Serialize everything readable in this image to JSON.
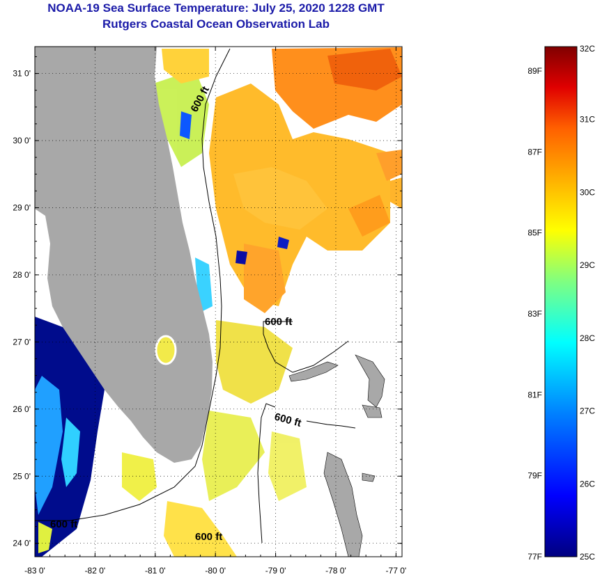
{
  "title": "NOAA-19 Sea Surface Temperature:  July 25, 2020 1228 GMT",
  "subtitle": "Rutgers Coastal Ocean Observation Lab",
  "map": {
    "lat_labels": [
      "31 0'",
      "30 0'",
      "29 0'",
      "28 0'",
      "27 0'",
      "26 0'",
      "25 0'",
      "24 0'"
    ],
    "lat_values": [
      31,
      30,
      29,
      28,
      27,
      26,
      25,
      24
    ],
    "lon_labels": [
      "-83 0'",
      "-82 0'",
      "-81 0'",
      "-80 0'",
      "-79 0'",
      "-78 0'",
      "-77 0'"
    ],
    "lon_values": [
      -83,
      -82,
      -81,
      -80,
      -79,
      -78,
      -77
    ],
    "lat_range": [
      23.8,
      31.4
    ],
    "lon_range": [
      -83.0,
      -76.9
    ],
    "contour_label": "600 ft",
    "colors": {
      "land": "#a8a8a8",
      "ocean_nodata": "#ffffff",
      "contour": "#000000"
    }
  },
  "colorbar": {
    "range_c": [
      25,
      32
    ],
    "celsius_labels": [
      "32C",
      "31C",
      "30C",
      "29C",
      "28C",
      "27C",
      "26C",
      "25C"
    ],
    "celsius_values": [
      32,
      31,
      30,
      29,
      28,
      27,
      26,
      25
    ],
    "fahrenheit_labels": [
      "89F",
      "87F",
      "85F",
      "83F",
      "81F",
      "79F",
      "77F"
    ],
    "fahrenheit_values": [
      89,
      87,
      85,
      83,
      81,
      79,
      77
    ],
    "gradient": [
      "#000080",
      "#0000ff",
      "#0080ff",
      "#00ffff",
      "#80ff80",
      "#ffff00",
      "#ff8000",
      "#ff0000",
      "#800000"
    ]
  }
}
